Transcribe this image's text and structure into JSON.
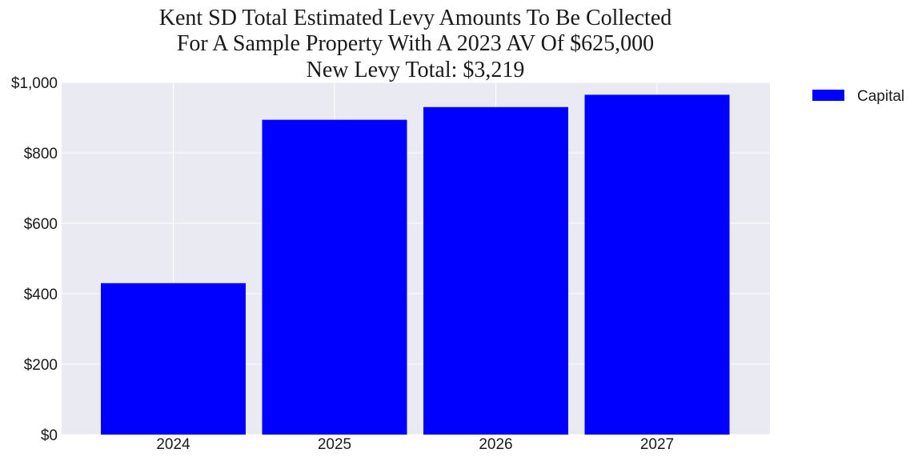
{
  "chart_data": {
    "type": "bar",
    "title_lines": [
      "Kent SD Total Estimated Levy Amounts To Be Collected",
      "For A Sample Property With A 2023 AV Of $625,000",
      "New Levy Total: $3,219"
    ],
    "categories": [
      "2024",
      "2025",
      "2026",
      "2027"
    ],
    "series": [
      {
        "name": "Capital",
        "color": "#0000ff",
        "values": [
          430,
          894,
          930,
          965
        ]
      }
    ],
    "xlabel": "",
    "ylabel": "",
    "ylim": [
      0,
      1000
    ],
    "yticks": [
      0,
      200,
      400,
      600,
      800,
      1000
    ],
    "ytick_labels": [
      "$0",
      "$200",
      "$400",
      "$600",
      "$800",
      "$1,000"
    ],
    "grid": true,
    "legend_position": "upper right, outside plot"
  },
  "colors": {
    "plot_background": "#eaeaf2",
    "grid": "#ffffff",
    "bar": "#0000ff"
  }
}
